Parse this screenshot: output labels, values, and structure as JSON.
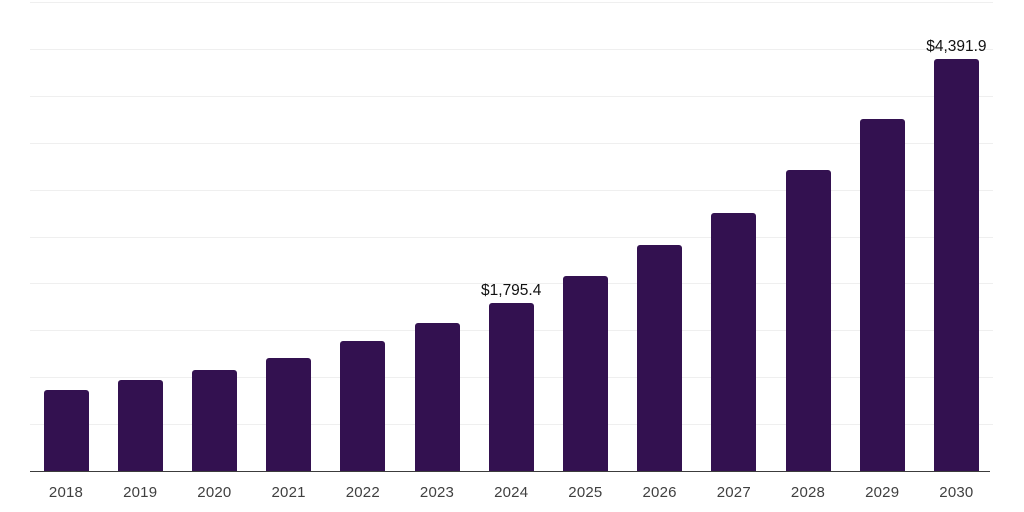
{
  "chart_data": {
    "type": "bar",
    "title": "",
    "xlabel": "",
    "ylabel": "",
    "categories": [
      "2018",
      "2019",
      "2020",
      "2021",
      "2022",
      "2023",
      "2024",
      "2025",
      "2026",
      "2027",
      "2028",
      "2029",
      "2030"
    ],
    "values": [
      865,
      965,
      1075,
      1210,
      1385,
      1580,
      1795.4,
      2075,
      2405,
      2755,
      3205,
      3750,
      4391.9
    ],
    "point_labels": [
      "",
      "",
      "",
      "",
      "",
      "",
      "$1,795.4",
      "",
      "",
      "",
      "",
      "",
      "$4,391.9"
    ],
    "ylim": [
      0,
      5000
    ],
    "gridline_step": 500,
    "grid": "horizontal-only",
    "legend": "none",
    "bar_color": "#331150",
    "gridline_color": "#efefef",
    "axis_color": "#3c3c3c",
    "tick_label_color": "#404040",
    "value_label_color": "#111111",
    "background_color": "#ffffff"
  }
}
